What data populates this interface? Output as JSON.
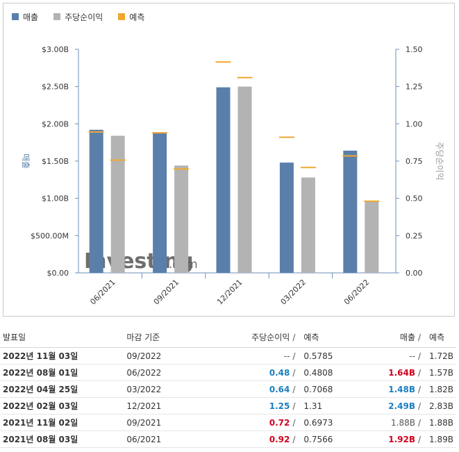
{
  "legend": [
    {
      "label": "매출",
      "color": "#5b7fab"
    },
    {
      "label": "주당순이익",
      "color": "#b3b3b3"
    },
    {
      "label": "예측",
      "color": "#f0a830"
    }
  ],
  "chart_data": {
    "type": "bar",
    "categories": [
      "06/2021",
      "09/2021",
      "12/2021",
      "03/2022",
      "06/2022"
    ],
    "series": [
      {
        "name": "매출",
        "axis": "left",
        "values": [
          1.92,
          1.88,
          2.49,
          1.48,
          1.64
        ],
        "forecast": [
          1.89,
          1.88,
          2.83,
          1.82,
          1.57
        ]
      },
      {
        "name": "주당순이익",
        "axis": "right",
        "values": [
          0.92,
          0.72,
          1.25,
          0.64,
          0.48
        ],
        "forecast": [
          0.7566,
          0.6973,
          1.31,
          0.7068,
          0.4808
        ]
      }
    ],
    "ylabel": "매출",
    "ylabel_right": "주당순이익",
    "ylim": [
      0,
      3.0
    ],
    "ylim_right": [
      0,
      1.5
    ],
    "yticks_left": [
      "$0.00",
      "$500.00M",
      "$1.00B",
      "$1.50B",
      "$2.00B",
      "$2.50B",
      "$3.00B"
    ],
    "yticks_right": [
      "0.00",
      "0.25",
      "0.50",
      "0.75",
      "1.00",
      "1.25",
      "1.50"
    ],
    "grid": false,
    "legend_position": "top-left",
    "watermark": "Investing.com"
  },
  "table": {
    "headers": {
      "date": "발표일",
      "period": "마감 기준",
      "eps": "주당순이익",
      "eps_fc": "예측",
      "rev": "매출",
      "rev_fc": "예측"
    },
    "separator": "/",
    "rows": [
      {
        "date": "2022년 11월 03일",
        "period": "09/2022",
        "eps": "--",
        "eps_state": "none",
        "eps_fc": "0.5785",
        "rev": "--",
        "rev_state": "none",
        "rev_fc": "1.72B"
      },
      {
        "date": "2022년 08월 01일",
        "period": "06/2022",
        "eps": "0.48",
        "eps_state": "up",
        "eps_fc": "0.4808",
        "rev": "1.64B",
        "rev_state": "down",
        "rev_fc": "1.57B"
      },
      {
        "date": "2022년 04월 25일",
        "period": "03/2022",
        "eps": "0.64",
        "eps_state": "up",
        "eps_fc": "0.7068",
        "rev": "1.48B",
        "rev_state": "up",
        "rev_fc": "1.82B"
      },
      {
        "date": "2022년 02월 03일",
        "period": "12/2021",
        "eps": "1.25",
        "eps_state": "up",
        "eps_fc": "1.31",
        "rev": "2.49B",
        "rev_state": "up",
        "rev_fc": "2.83B"
      },
      {
        "date": "2021년 11월 02일",
        "period": "09/2021",
        "eps": "0.72",
        "eps_state": "down",
        "eps_fc": "0.6973",
        "rev": "1.88B",
        "rev_state": "none",
        "rev_fc": "1.88B"
      },
      {
        "date": "2021년 08월 03일",
        "period": "06/2021",
        "eps": "0.92",
        "eps_state": "down",
        "eps_fc": "0.7566",
        "rev": "1.92B",
        "rev_state": "down",
        "rev_fc": "1.89B"
      }
    ]
  }
}
